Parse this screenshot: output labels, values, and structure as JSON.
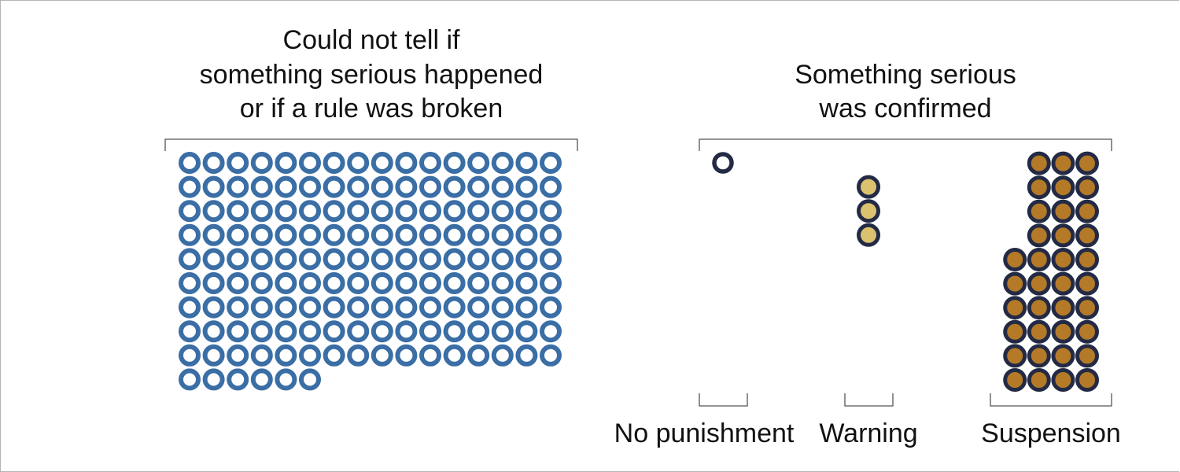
{
  "chart_data": {
    "type": "unit-dot",
    "panels": [
      {
        "title_lines": [
          "Could not tell if",
          "something serious happened",
          "or if a rule was broken"
        ],
        "groups": [
          {
            "label": "",
            "count": 150,
            "fill": "#ffffff",
            "stroke": "#3a6ea5"
          }
        ]
      },
      {
        "title_lines": [
          "Something serious",
          "was confirmed"
        ],
        "groups": [
          {
            "label": "No punishment",
            "count": 1,
            "fill": "#ffffff",
            "stroke": "#232a45"
          },
          {
            "label": "Warning",
            "count": 3,
            "fill": "#dcc26e",
            "stroke": "#232a45"
          },
          {
            "label": "Suspension",
            "count": 36,
            "fill": "#b47a27",
            "stroke": "#232a45"
          }
        ]
      }
    ]
  }
}
